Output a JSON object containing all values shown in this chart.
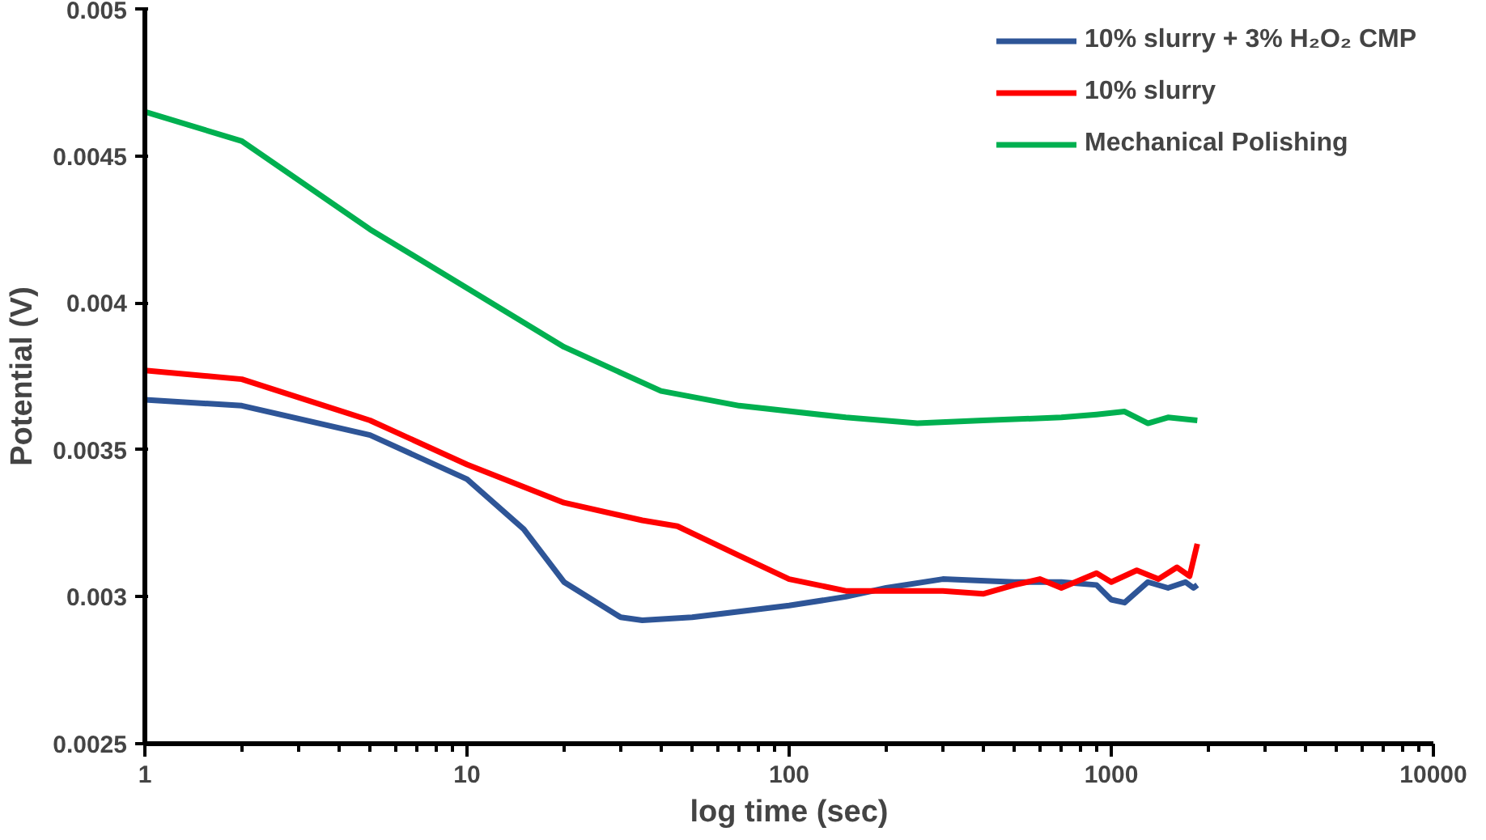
{
  "chart_data": {
    "type": "line",
    "xlabel": "log time (sec)",
    "ylabel": "Potential (V)",
    "log": "x",
    "xlim": [
      1,
      10000
    ],
    "xticks": [
      1,
      10,
      100,
      1000,
      10000
    ],
    "ylim": [
      0.0025,
      0.005
    ],
    "yticks": [
      0.0025,
      0.003,
      0.0035,
      0.004,
      0.0045,
      0.005
    ],
    "grid": false,
    "legend": "top right",
    "marker": "none",
    "line_style": "solid",
    "series": [
      {
        "name": "10% slurry + 3% H₂O₂ CMP",
        "color": "#2e5597",
        "x": [
          1,
          2,
          5,
          10,
          15,
          20,
          30,
          35,
          50,
          100,
          150,
          200,
          300,
          500,
          700,
          900,
          1000,
          1100,
          1300,
          1500,
          1700,
          1800,
          1850
        ],
        "values": [
          0.00367,
          0.00365,
          0.00355,
          0.0034,
          0.00323,
          0.00305,
          0.00293,
          0.00292,
          0.00293,
          0.00297,
          0.003,
          0.00303,
          0.00306,
          0.00305,
          0.00305,
          0.00304,
          0.00299,
          0.00298,
          0.00305,
          0.00303,
          0.00305,
          0.00303,
          0.00304
        ]
      },
      {
        "name": "10% slurry",
        "color": "#ff0000",
        "x": [
          1,
          2,
          5,
          10,
          20,
          35,
          45,
          70,
          100,
          150,
          200,
          300,
          400,
          500,
          600,
          700,
          900,
          1000,
          1200,
          1400,
          1600,
          1750,
          1850
        ],
        "values": [
          0.00377,
          0.00374,
          0.0036,
          0.00345,
          0.00332,
          0.00326,
          0.00324,
          0.00314,
          0.00306,
          0.00302,
          0.00302,
          0.00302,
          0.00301,
          0.00304,
          0.00306,
          0.00303,
          0.00308,
          0.00305,
          0.00309,
          0.00306,
          0.0031,
          0.00307,
          0.00318
        ]
      },
      {
        "name": "Mechanical Polishing",
        "color": "#00b050",
        "x": [
          1,
          2,
          5,
          10,
          20,
          40,
          70,
          150,
          250,
          400,
          700,
          900,
          1100,
          1300,
          1500,
          1850
        ],
        "values": [
          0.00465,
          0.00455,
          0.00425,
          0.00405,
          0.00385,
          0.0037,
          0.00365,
          0.00361,
          0.00359,
          0.0036,
          0.00361,
          0.00362,
          0.00363,
          0.00359,
          0.00361,
          0.0036
        ]
      }
    ]
  }
}
